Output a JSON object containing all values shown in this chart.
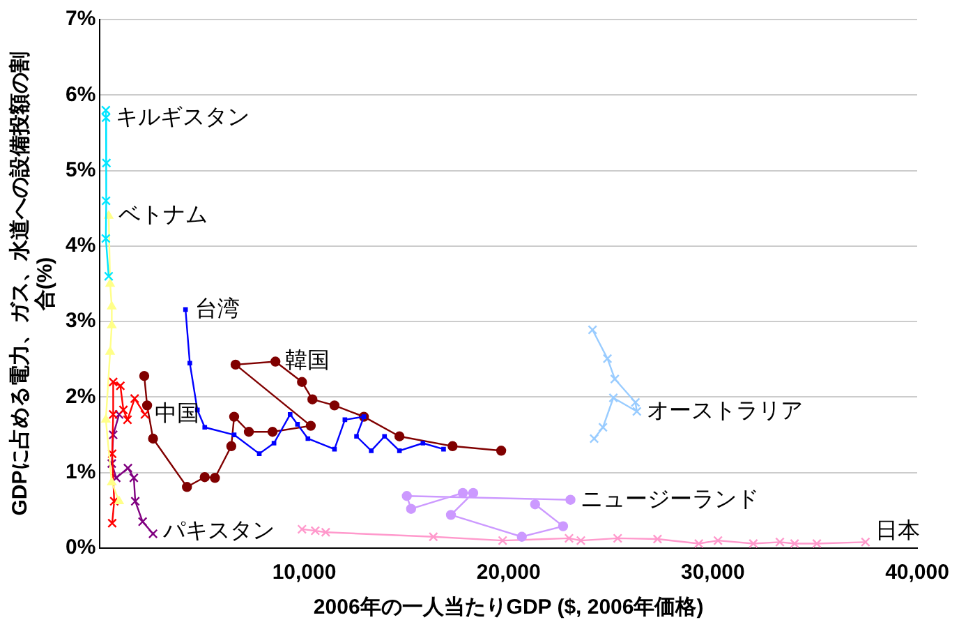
{
  "chart_data": {
    "type": "line",
    "xlabel": "2006年の一人当たりGDP ($, 2006年価格)",
    "ylabel": "GDPに占める電力、ガス、水道への設備投額の割合(%)",
    "xlim": [
      0,
      40000
    ],
    "ylim": [
      0,
      7
    ],
    "xticks": [
      {
        "value": 0,
        "label": null
      },
      {
        "value": 10000,
        "label": "10,000"
      },
      {
        "value": 20000,
        "label": "20,000"
      },
      {
        "value": 30000,
        "label": "30,000"
      },
      {
        "value": 40000,
        "label": "40,000"
      }
    ],
    "yticks": [
      {
        "value": 0,
        "label": "0%"
      },
      {
        "value": 1,
        "label": "1%"
      },
      {
        "value": 2,
        "label": "2%"
      },
      {
        "value": 3,
        "label": "3%"
      },
      {
        "value": 4,
        "label": "4%"
      },
      {
        "value": 5,
        "label": "5%"
      },
      {
        "value": 6,
        "label": "6%"
      },
      {
        "value": 7,
        "label": "7%"
      }
    ],
    "grid": "y",
    "legend": false,
    "series": [
      {
        "color": "#00e5ff",
        "marker": "cross",
        "x": [
          290,
          300,
          320,
          300,
          290,
          430
        ],
        "values": [
          5.8,
          5.7,
          5.1,
          4.6,
          4.1,
          3.6
        ]
      },
      {
        "color": "#ffff88",
        "marker": "triangle",
        "x": [
          430,
          500,
          580,
          580,
          500,
          290,
          580,
          940
        ],
        "values": [
          4.4,
          3.5,
          3.2,
          2.95,
          2.6,
          1.7,
          0.87,
          0.62
        ]
      },
      {
        "color": "#ff0000",
        "marker": "cross",
        "x": [
          600,
          700,
          600,
          650,
          650,
          1000,
          1150,
          1350,
          1700,
          2200
        ],
        "values": [
          0.33,
          0.62,
          1.25,
          1.77,
          2.2,
          2.15,
          1.83,
          1.7,
          1.98,
          1.77
        ]
      },
      {
        "color": "#800080",
        "marker": "cross",
        "x": [
          940,
          650,
          580,
          800,
          1370,
          1660,
          1730,
          2090,
          2600
        ],
        "values": [
          1.77,
          1.5,
          1.12,
          0.93,
          1.06,
          0.93,
          0.62,
          0.35,
          0.19
        ]
      },
      {
        "color": "#0000ff",
        "marker": "square",
        "x": [
          4190,
          4400,
          4770,
          5130,
          6570,
          7800,
          8520,
          9310,
          9670,
          10180,
          11480,
          11990,
          12920,
          12560,
          13280,
          13930,
          14660,
          15810,
          16820
        ],
        "values": [
          3.16,
          2.45,
          1.83,
          1.6,
          1.5,
          1.25,
          1.39,
          1.77,
          1.64,
          1.45,
          1.31,
          1.7,
          1.74,
          1.48,
          1.29,
          1.48,
          1.29,
          1.39,
          1.31
        ]
      },
      {
        "color": "#800000",
        "marker": "circle",
        "x": [
          2170,
          2310,
          2600,
          4260,
          5130,
          5630,
          6430,
          6570,
          7290,
          8450,
          10320,
          6640,
          8590,
          9890,
          10400,
          11480,
          12920,
          14660,
          17260,
          19640
        ],
        "values": [
          2.28,
          1.89,
          1.45,
          0.81,
          0.94,
          0.93,
          1.35,
          1.74,
          1.54,
          1.54,
          1.62,
          2.43,
          2.47,
          2.2,
          1.97,
          1.89,
          1.74,
          1.48,
          1.35,
          1.29
        ]
      },
      {
        "color": "#99ccff",
        "marker": "cross",
        "x": [
          24110,
          24840,
          25200,
          26210,
          26280,
          25130,
          24620,
          24190
        ],
        "values": [
          2.89,
          2.51,
          2.24,
          1.93,
          1.81,
          1.99,
          1.6,
          1.45
        ]
      },
      {
        "color": "#cc99ff",
        "marker": "circle",
        "x": [
          21300,
          22670,
          20650,
          17180,
          18270,
          17760,
          15230,
          15020,
          23030
        ],
        "values": [
          0.58,
          0.29,
          0.15,
          0.44,
          0.73,
          0.73,
          0.52,
          0.69,
          0.64
        ]
      },
      {
        "color": "#ff99cc",
        "marker": "cross",
        "x": [
          9890,
          10540,
          11050,
          16320,
          19710,
          22960,
          23540,
          25340,
          27290,
          29310,
          30250,
          31980,
          33280,
          34000,
          35090,
          37470
        ],
        "values": [
          0.25,
          0.23,
          0.21,
          0.15,
          0.1,
          0.13,
          0.1,
          0.13,
          0.12,
          0.06,
          0.1,
          0.06,
          0.08,
          0.06,
          0.06,
          0.08
        ]
      }
    ],
    "annotations": [
      {
        "text": "キルギスタン",
        "x": 300,
        "y": 5.7
      },
      {
        "text": "ベトナム",
        "x": 430,
        "y": 4.4
      },
      {
        "text": "台湾",
        "x": 4190,
        "y": 3.16
      },
      {
        "text": "中国",
        "x": 2200,
        "y": 1.77
      },
      {
        "text": "韓国",
        "x": 8590,
        "y": 2.47
      },
      {
        "text": "オーストラリア",
        "x": 26280,
        "y": 1.81
      },
      {
        "text": "ニュージーランド",
        "x": 23030,
        "y": 0.64
      },
      {
        "text": "日本",
        "x": 37470,
        "y": 0.08
      },
      {
        "text": "パキスタン",
        "x": 2600,
        "y": 0.19
      }
    ]
  }
}
